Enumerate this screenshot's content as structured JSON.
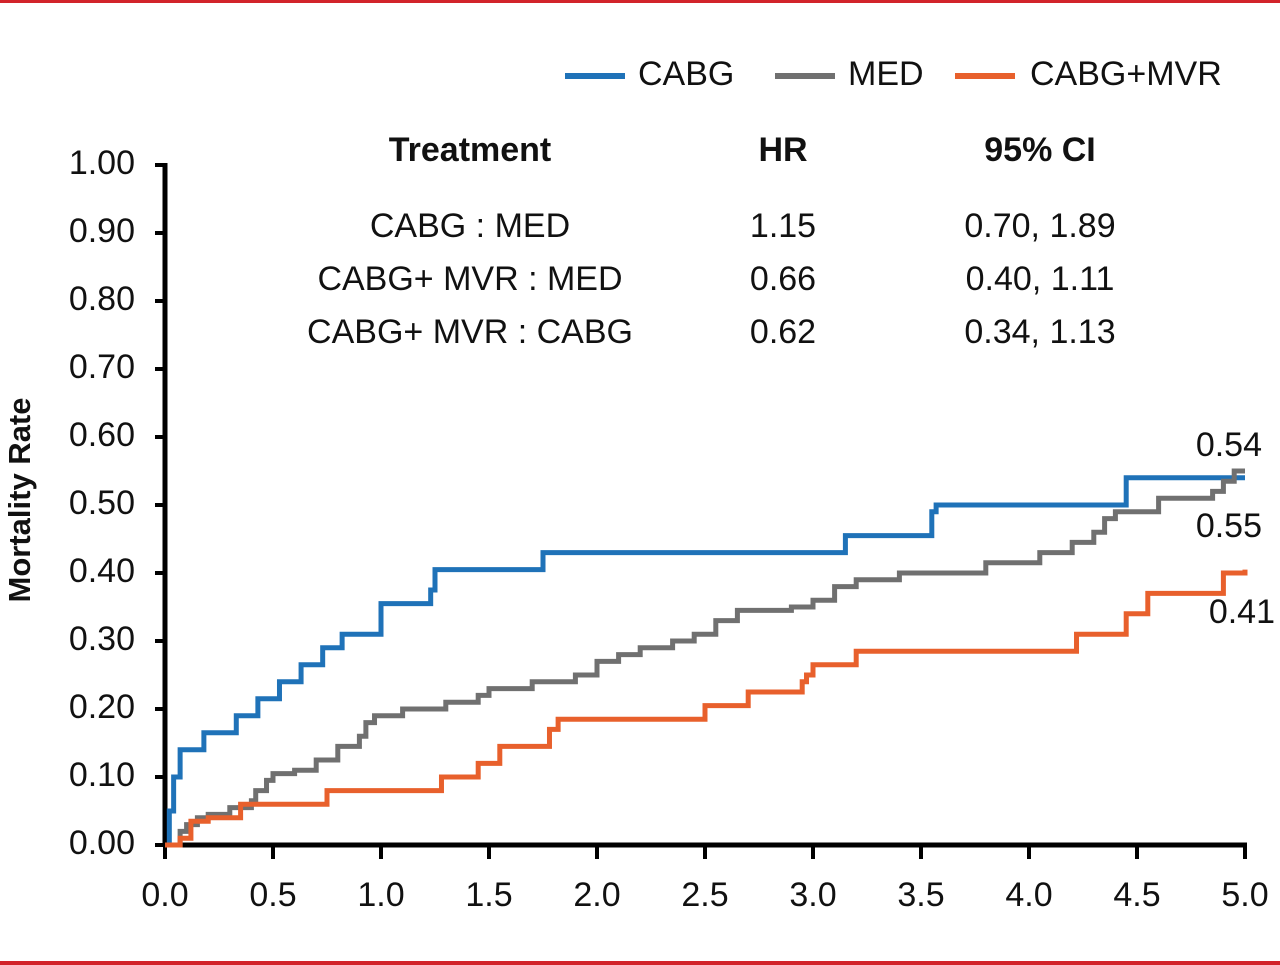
{
  "chart_data": {
    "type": "step-line",
    "y_label": "Mortality Rate",
    "xlim": [
      0,
      5
    ],
    "ylim": [
      0,
      1
    ],
    "xticks": [
      {
        "value": 0,
        "label": "0.0"
      },
      0.5,
      {
        "value": 1,
        "label": "1.0"
      },
      1.5,
      {
        "value": 2,
        "label": "2.0"
      },
      2.5,
      {
        "value": 3,
        "label": "3.0"
      },
      3.5,
      {
        "value": 4,
        "label": "4.0"
      },
      4.5,
      {
        "value": 5,
        "label": "5.0"
      }
    ],
    "yticks": [
      {
        "value": 0,
        "label": "0.00"
      },
      {
        "value": 0.1,
        "label": "0.10"
      },
      {
        "value": 0.2,
        "label": "0.20"
      },
      {
        "value": 0.3,
        "label": "0.30"
      },
      {
        "value": 0.4,
        "label": "0.40"
      },
      {
        "value": 0.5,
        "label": "0.50"
      },
      {
        "value": 0.6,
        "label": "0.60"
      },
      {
        "value": 0.7,
        "label": "0.70"
      },
      {
        "value": 0.8,
        "label": "0.80"
      },
      {
        "value": 0.9,
        "label": "0.90"
      },
      {
        "value": 1,
        "label": "1.00"
      }
    ],
    "grid": false,
    "legend": "top-right",
    "series": [
      {
        "name": "CABG",
        "color": "#1f72b8",
        "x": [
          0,
          0.02,
          0.04,
          0.07,
          0.18,
          0.33,
          0.43,
          0.53,
          0.63,
          0.73,
          0.82,
          1.0,
          1.23,
          1.25,
          1.75,
          3.15,
          3.55,
          3.57,
          4.45,
          5.0
        ],
        "values": [
          0,
          0.05,
          0.1,
          0.14,
          0.165,
          0.19,
          0.215,
          0.24,
          0.265,
          0.29,
          0.31,
          0.355,
          0.375,
          0.405,
          0.43,
          0.455,
          0.49,
          0.5,
          0.54,
          0.54
        ]
      },
      {
        "name": "MED",
        "color": "#707070",
        "x": [
          0,
          0.07,
          0.1,
          0.15,
          0.2,
          0.3,
          0.4,
          0.42,
          0.47,
          0.5,
          0.6,
          0.7,
          0.8,
          0.9,
          0.93,
          0.97,
          1.1,
          1.3,
          1.45,
          1.5,
          1.7,
          1.9,
          2.0,
          2.1,
          2.2,
          2.35,
          2.45,
          2.55,
          2.65,
          2.9,
          3.0,
          3.1,
          3.2,
          3.4,
          3.8,
          4.05,
          4.2,
          4.3,
          4.35,
          4.4,
          4.6,
          4.85,
          4.9,
          4.95,
          5.0
        ],
        "values": [
          0,
          0.02,
          0.03,
          0.04,
          0.045,
          0.055,
          0.065,
          0.08,
          0.095,
          0.105,
          0.11,
          0.125,
          0.145,
          0.16,
          0.18,
          0.19,
          0.2,
          0.21,
          0.22,
          0.23,
          0.24,
          0.25,
          0.27,
          0.28,
          0.29,
          0.3,
          0.31,
          0.33,
          0.345,
          0.35,
          0.36,
          0.38,
          0.39,
          0.4,
          0.415,
          0.43,
          0.445,
          0.46,
          0.48,
          0.49,
          0.51,
          0.52,
          0.535,
          0.55,
          0.55
        ]
      },
      {
        "name": "CABG+MVR",
        "color": "#e8602c",
        "x": [
          0,
          0.07,
          0.12,
          0.2,
          0.35,
          0.75,
          1.28,
          1.45,
          1.55,
          1.78,
          1.82,
          2.5,
          2.7,
          2.95,
          2.97,
          3.0,
          3.2,
          4.22,
          4.45,
          4.55,
          4.9,
          5.0
        ],
        "values": [
          0,
          0.01,
          0.035,
          0.04,
          0.06,
          0.08,
          0.1,
          0.12,
          0.145,
          0.17,
          0.185,
          0.205,
          0.225,
          0.24,
          0.25,
          0.265,
          0.285,
          0.31,
          0.34,
          0.37,
          0.4,
          0.405
        ]
      }
    ],
    "annotations": [
      "0.54",
      "0.55",
      "0.41"
    ],
    "table": {
      "header": [
        "Treatment",
        "HR",
        "95% CI"
      ],
      "rows": [
        [
          "CABG : MED",
          "1.15",
          "0.70, 1.89"
        ],
        [
          "CABG+ MVR : MED",
          "0.66",
          "0.40, 1.11"
        ],
        [
          "CABG+ MVR : CABG",
          "0.62",
          "0.34, 1.13"
        ]
      ]
    }
  }
}
